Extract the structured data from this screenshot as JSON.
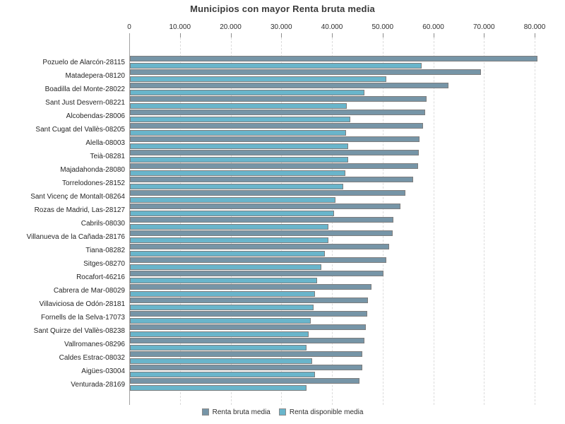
{
  "chart_data": {
    "type": "bar",
    "orientation": "horizontal",
    "title": "Municipios con mayor Renta bruta media",
    "axis": {
      "position": "top",
      "min": 0,
      "max": 80000,
      "tick_interval": 10000,
      "tick_labels": [
        "0",
        "10.000",
        "20.000",
        "30.000",
        "40.000",
        "50.000",
        "60.000",
        "70.000",
        "80.000"
      ],
      "gridlines": "dashed-vertical"
    },
    "legend_position": "bottom-center",
    "categories": [
      "Pozuelo de Alarcón-28115",
      "Matadepera-08120",
      "Boadilla del Monte-28022",
      "Sant Just Desvern-08221",
      "Alcobendas-28006",
      "Sant Cugat del Vallès-08205",
      "Alella-08003",
      "Teià-08281",
      "Majadahonda-28080",
      "Torrelodones-28152",
      "Sant Vicenç de Montalt-08264",
      "Rozas de Madrid, Las-28127",
      "Cabrils-08030",
      "Villanueva de la Cañada-28176",
      "Tiana-08282",
      "Sitges-08270",
      "Rocafort-46216",
      "Cabrera de Mar-08029",
      "Villaviciosa de Odón-28181",
      "Fornells de la Selva-17073",
      "Sant Quirze del Vallès-08238",
      "Vallromanes-08296",
      "Caldes Estrac-08032",
      "Aigües-03004",
      "Venturada-28169"
    ],
    "series": [
      {
        "name": "Renta bruta media",
        "color": "#7695A7",
        "values": [
          80400,
          69300,
          62900,
          58500,
          58300,
          57900,
          57200,
          57000,
          56900,
          55900,
          54300,
          53400,
          52000,
          51800,
          51100,
          50600,
          50100,
          47600,
          46900,
          46800,
          46500,
          46300,
          45900,
          45800,
          45300
        ]
      },
      {
        "name": "Renta disponible media",
        "color": "#69B5CB",
        "values": [
          57600,
          50600,
          46300,
          42800,
          43500,
          42600,
          43000,
          43100,
          42500,
          42100,
          40600,
          40300,
          39100,
          39200,
          38500,
          37800,
          36900,
          36500,
          36300,
          35700,
          35200,
          34900,
          35900,
          36500,
          34800
        ]
      }
    ]
  },
  "colors": {
    "bar_border": "#7e7e7e",
    "gridline": "#dcdcdc",
    "axis_line": "#a0a0a0",
    "tick": "#8c8c8c",
    "text": "#2e2e2e",
    "title": "#3a3a3a",
    "background": "#ffffff"
  }
}
